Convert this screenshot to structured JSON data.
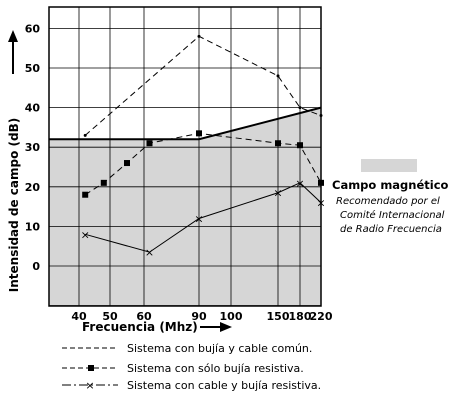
{
  "chart_data": {
    "type": "line",
    "xlabel": "Frecuencia (Mhz)",
    "ylabel": "Intensidad de campo (dB)",
    "x_ticks": [
      40,
      50,
      60,
      90,
      100,
      150,
      180,
      220
    ],
    "y_ticks": [
      0,
      10,
      20,
      30,
      40,
      50,
      60
    ],
    "xlim": [
      30,
      220
    ],
    "ylim": [
      -10,
      65
    ],
    "grid": true,
    "series": [
      {
        "name": "Sistema con bujía y cable común.",
        "style": "dashed",
        "marker": "none",
        "points": [
          [
            42,
            33
          ],
          [
            90,
            58
          ],
          [
            150,
            48
          ],
          [
            180,
            40
          ],
          [
            220,
            38
          ]
        ]
      },
      {
        "name": "Sistema con sólo bujía resistiva.",
        "style": "dashed",
        "marker": "square",
        "points": [
          [
            42,
            18
          ],
          [
            48,
            21
          ],
          [
            55,
            26
          ],
          [
            63,
            31
          ],
          [
            90,
            33.5
          ],
          [
            150,
            31
          ],
          [
            180,
            30.5
          ],
          [
            220,
            21
          ]
        ]
      },
      {
        "name": "Sistema con cable y bujía resistiva.",
        "style": "dash-dot",
        "marker": "x",
        "points": [
          [
            42,
            8
          ],
          [
            63,
            3.5
          ],
          [
            90,
            12
          ],
          [
            150,
            18.5
          ],
          [
            180,
            21
          ],
          [
            220,
            16
          ]
        ]
      }
    ],
    "shaded_region": {
      "name": "Campo magnético",
      "note": [
        "Recomendado por el",
        "Comité Internacional",
        "de Radio Frecuencia"
      ],
      "color": "#d6d6d6",
      "upper_boundary": [
        [
          30,
          32
        ],
        [
          90,
          32
        ],
        [
          220,
          40
        ]
      ]
    }
  }
}
